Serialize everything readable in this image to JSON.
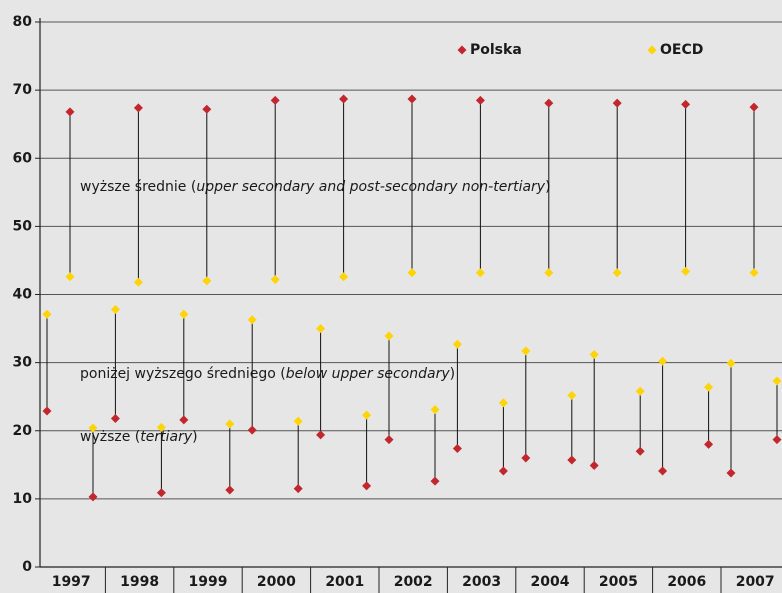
{
  "chart_data": {
    "type": "dot-range",
    "categories": [
      "1997",
      "1998",
      "1999",
      "2000",
      "2001",
      "2002",
      "2003",
      "2004",
      "2005",
      "2006",
      "2007"
    ],
    "series": [
      {
        "name": "Polska",
        "color": "#c1272d"
      },
      {
        "name": "OECD",
        "color": "#ffd400"
      }
    ],
    "groups": [
      {
        "label": {
          "before": "poniżej wyższego średniego (",
          "italic": "below upper secondary",
          "after": ")"
        },
        "values": [
          [
            22.9,
            21.8,
            21.6,
            20.1,
            19.4,
            18.7,
            17.4,
            16.0,
            14.9,
            14.1,
            13.8
          ],
          [
            37.1,
            37.8,
            37.1,
            36.3,
            35.0,
            33.9,
            32.7,
            31.7,
            31.2,
            30.2,
            29.9
          ]
        ]
      },
      {
        "label": {
          "before": "wyższe średnie (",
          "italic": "upper secondary and post-secondary non-tertiary",
          "after": ")"
        },
        "values": [
          [
            66.8,
            67.4,
            67.2,
            68.5,
            68.7,
            68.7,
            68.5,
            68.1,
            68.1,
            67.9,
            67.5
          ],
          [
            42.6,
            41.8,
            42.0,
            42.2,
            42.6,
            43.2,
            43.2,
            43.2,
            43.2,
            43.4,
            43.2
          ]
        ]
      },
      {
        "label": {
          "before": "wyższe (",
          "italic": "tertiary",
          "after": ")"
        },
        "values": [
          [
            10.3,
            10.9,
            11.3,
            11.5,
            11.9,
            12.6,
            14.1,
            15.7,
            17.0,
            18.0,
            18.7
          ],
          [
            20.4,
            20.5,
            21.0,
            21.4,
            22.3,
            23.1,
            24.1,
            25.2,
            25.8,
            26.4,
            27.3
          ]
        ]
      }
    ],
    "ylim": [
      0,
      80
    ],
    "yticks": [
      0,
      10,
      20,
      30,
      40,
      50,
      60,
      70,
      80
    ],
    "grid": true
  }
}
